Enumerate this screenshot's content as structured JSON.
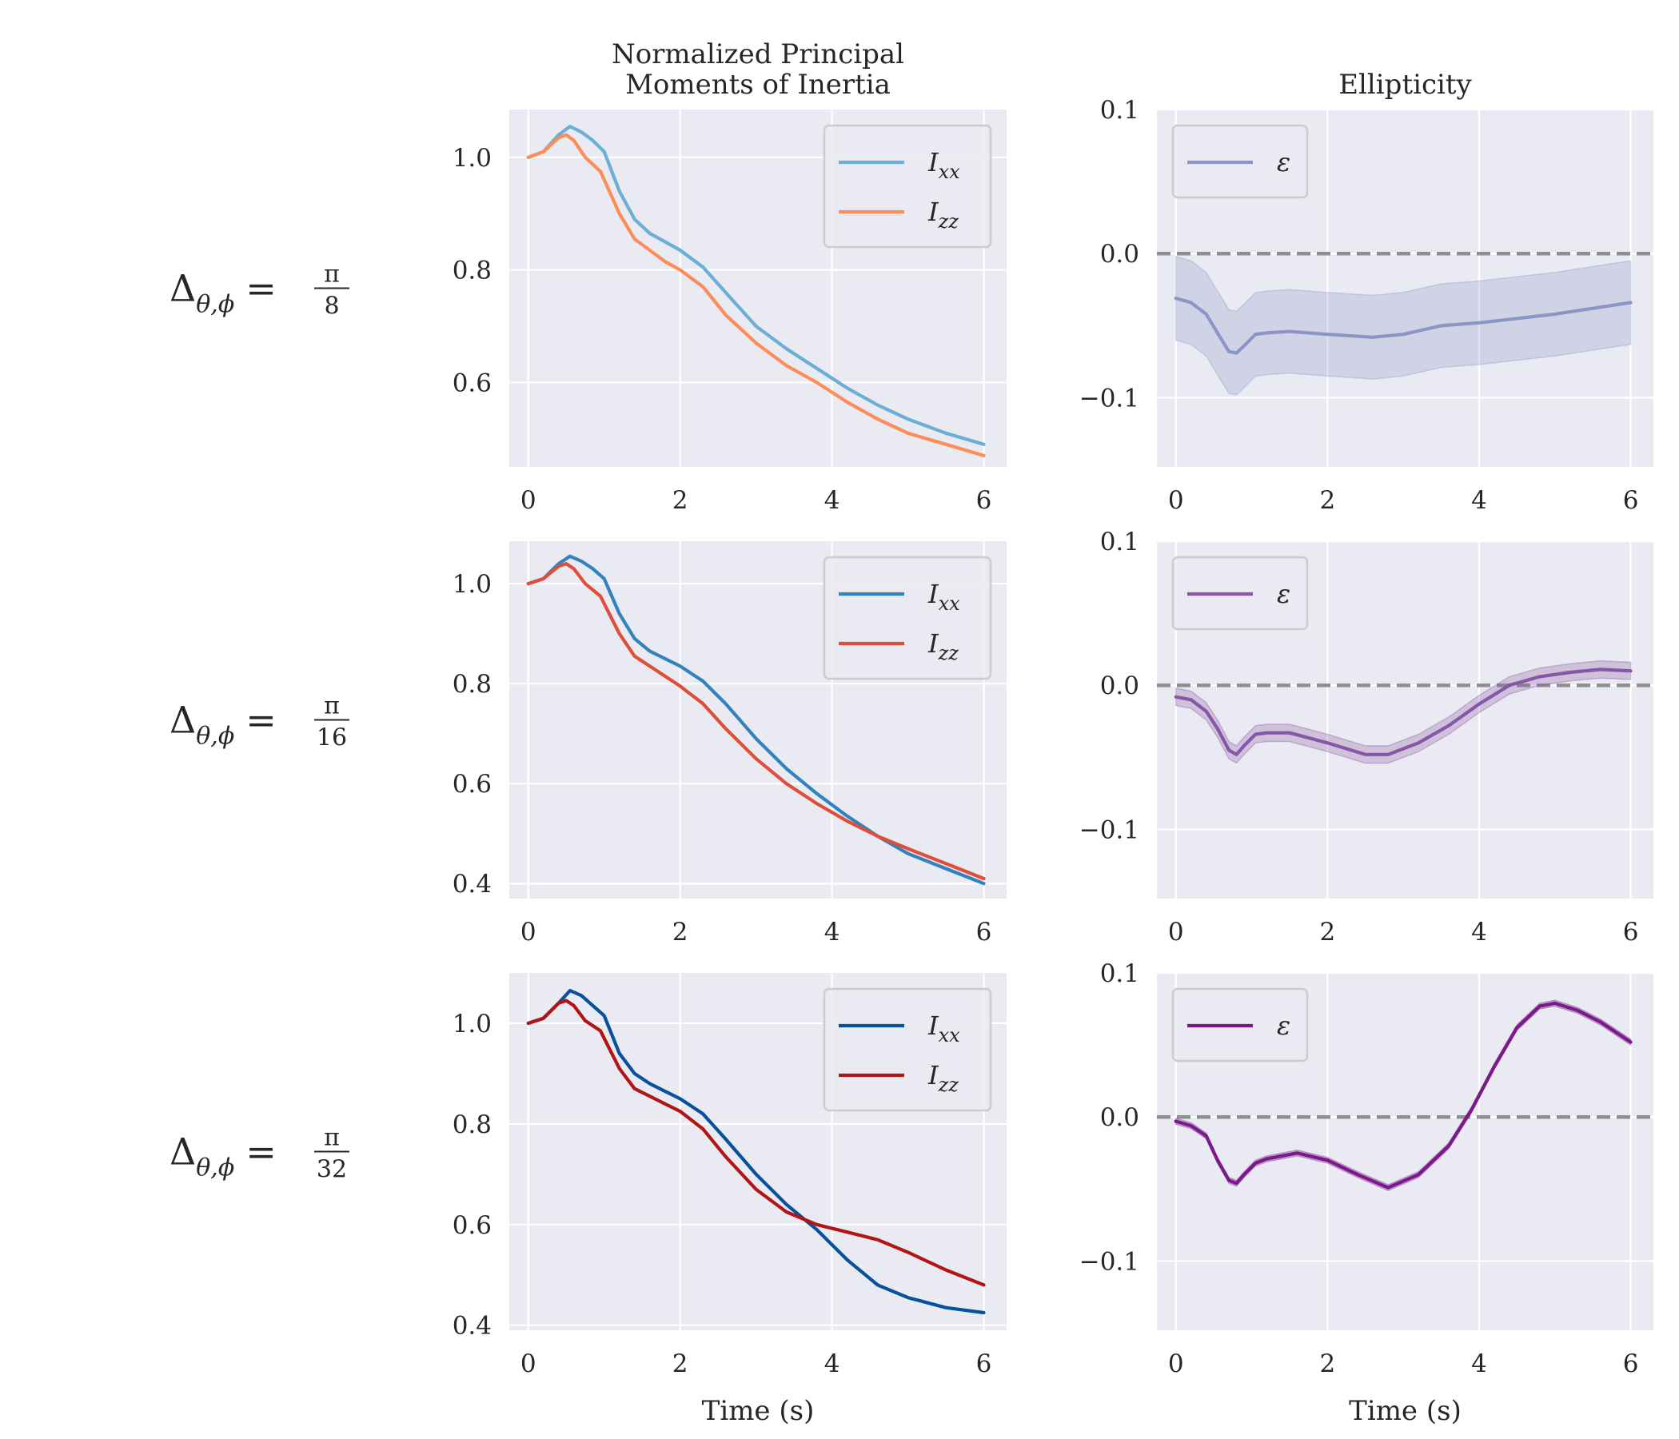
{
  "chart_data": [
    {
      "type": "line",
      "row": 0,
      "col": 0,
      "title": [
        "Normalized Principal",
        "Moments of Inertia"
      ],
      "xlabel": "",
      "ylabel": "",
      "xlim": [
        -0.25,
        6.3
      ],
      "ylim": [
        0.45,
        1.085
      ],
      "xticks": [
        0,
        2,
        4,
        6
      ],
      "yticks": [
        0.6,
        0.8,
        1.0
      ],
      "xtick_labels": [
        "0",
        "2",
        "4",
        "6"
      ],
      "ytick_labels": [
        "0.6",
        "0.8",
        "1.0"
      ],
      "grid": true,
      "legend": "top-right",
      "series": [
        {
          "name": "I",
          "sub": "xx",
          "color": "#6baed6",
          "x": [
            0,
            0.2,
            0.4,
            0.55,
            0.7,
            0.85,
            1.0,
            1.2,
            1.4,
            1.6,
            1.8,
            2.0,
            2.3,
            2.6,
            3.0,
            3.4,
            3.8,
            4.2,
            4.6,
            5.0,
            5.5,
            6.0
          ],
          "y": [
            1.0,
            1.01,
            1.04,
            1.055,
            1.045,
            1.03,
            1.01,
            0.94,
            0.89,
            0.865,
            0.85,
            0.835,
            0.805,
            0.76,
            0.7,
            0.66,
            0.625,
            0.59,
            0.56,
            0.535,
            0.51,
            0.49
          ]
        },
        {
          "name": "I",
          "sub": "zz",
          "color": "#fc8d59",
          "x": [
            0,
            0.2,
            0.4,
            0.5,
            0.6,
            0.75,
            0.95,
            1.2,
            1.4,
            1.6,
            1.8,
            2.0,
            2.3,
            2.6,
            3.0,
            3.4,
            3.8,
            4.2,
            4.6,
            5.0,
            5.5,
            6.0
          ],
          "y": [
            1.0,
            1.01,
            1.035,
            1.04,
            1.03,
            1.0,
            0.975,
            0.9,
            0.855,
            0.835,
            0.815,
            0.8,
            0.77,
            0.72,
            0.67,
            0.63,
            0.6,
            0.565,
            0.535,
            0.51,
            0.49,
            0.47
          ]
        }
      ]
    },
    {
      "type": "line",
      "row": 0,
      "col": 1,
      "title": [
        "Ellipticity"
      ],
      "xlabel": "",
      "ylabel": "",
      "xlim": [
        -0.25,
        6.3
      ],
      "ylim": [
        -0.148,
        0.1
      ],
      "xticks": [
        0,
        2,
        4,
        6
      ],
      "yticks": [
        -0.1,
        0.0,
        0.1
      ],
      "xtick_labels": [
        "0",
        "2",
        "4",
        "6"
      ],
      "ytick_labels": [
        "−0.1",
        "0.0",
        "0.1"
      ],
      "grid": true,
      "legend": "top-left",
      "hline": 0.0,
      "series": [
        {
          "name": "ε",
          "sub": "",
          "color": "#8c96c6",
          "x": [
            0,
            0.2,
            0.4,
            0.55,
            0.7,
            0.8,
            0.9,
            1.05,
            1.2,
            1.5,
            2.0,
            2.6,
            3.0,
            3.5,
            4.0,
            4.5,
            5.0,
            5.5,
            6.0
          ],
          "y": [
            -0.031,
            -0.034,
            -0.042,
            -0.055,
            -0.068,
            -0.069,
            -0.064,
            -0.056,
            -0.055,
            -0.054,
            -0.056,
            -0.058,
            -0.056,
            -0.05,
            -0.048,
            -0.045,
            -0.042,
            -0.038,
            -0.034
          ],
          "band": 0.029
        }
      ]
    },
    {
      "type": "line",
      "row": 1,
      "col": 0,
      "title": [],
      "xlabel": "",
      "ylabel": "",
      "xlim": [
        -0.25,
        6.3
      ],
      "ylim": [
        0.37,
        1.085
      ],
      "xticks": [
        0,
        2,
        4,
        6
      ],
      "yticks": [
        0.4,
        0.6,
        0.8,
        1.0
      ],
      "xtick_labels": [
        "0",
        "2",
        "4",
        "6"
      ],
      "ytick_labels": [
        "0.4",
        "0.6",
        "0.8",
        "1.0"
      ],
      "grid": true,
      "legend": "top-right",
      "series": [
        {
          "name": "I",
          "sub": "xx",
          "color": "#3182bd",
          "x": [
            0,
            0.2,
            0.4,
            0.55,
            0.7,
            0.85,
            1.0,
            1.2,
            1.4,
            1.6,
            1.8,
            2.0,
            2.3,
            2.6,
            3.0,
            3.4,
            3.8,
            4.2,
            4.6,
            5.0,
            5.5,
            6.0
          ],
          "y": [
            1.0,
            1.01,
            1.04,
            1.055,
            1.045,
            1.03,
            1.01,
            0.94,
            0.89,
            0.865,
            0.85,
            0.835,
            0.805,
            0.76,
            0.69,
            0.63,
            0.58,
            0.535,
            0.495,
            0.46,
            0.43,
            0.4
          ]
        },
        {
          "name": "I",
          "sub": "zz",
          "color": "#de4e3a",
          "x": [
            0,
            0.2,
            0.4,
            0.5,
            0.6,
            0.75,
            0.95,
            1.2,
            1.4,
            1.6,
            1.8,
            2.0,
            2.3,
            2.6,
            3.0,
            3.4,
            3.8,
            4.2,
            4.6,
            5.0,
            5.5,
            6.0
          ],
          "y": [
            1.0,
            1.01,
            1.035,
            1.04,
            1.03,
            1.0,
            0.975,
            0.9,
            0.855,
            0.835,
            0.815,
            0.795,
            0.76,
            0.71,
            0.65,
            0.6,
            0.56,
            0.525,
            0.495,
            0.47,
            0.44,
            0.41
          ]
        }
      ]
    },
    {
      "type": "line",
      "row": 1,
      "col": 1,
      "title": [],
      "xlabel": "",
      "ylabel": "",
      "xlim": [
        -0.25,
        6.3
      ],
      "ylim": [
        -0.148,
        0.1
      ],
      "xticks": [
        0,
        2,
        4,
        6
      ],
      "yticks": [
        -0.1,
        0.0,
        0.1
      ],
      "xtick_labels": [
        "0",
        "2",
        "4",
        "6"
      ],
      "ytick_labels": [
        "−0.1",
        "0.0",
        "0.1"
      ],
      "grid": true,
      "legend": "top-left",
      "hline": 0.0,
      "series": [
        {
          "name": "ε",
          "sub": "",
          "color": "#8856a7",
          "x": [
            0,
            0.2,
            0.4,
            0.55,
            0.7,
            0.8,
            0.9,
            1.05,
            1.2,
            1.5,
            2.0,
            2.5,
            2.8,
            3.2,
            3.6,
            4.0,
            4.4,
            4.8,
            5.2,
            5.6,
            6.0
          ],
          "y": [
            -0.008,
            -0.01,
            -0.018,
            -0.03,
            -0.045,
            -0.048,
            -0.042,
            -0.034,
            -0.033,
            -0.033,
            -0.04,
            -0.048,
            -0.048,
            -0.04,
            -0.028,
            -0.013,
            0.0,
            0.006,
            0.009,
            0.011,
            0.01
          ],
          "band": 0.006
        }
      ]
    },
    {
      "type": "line",
      "row": 2,
      "col": 0,
      "title": [],
      "xlabel": "Time (s)",
      "ylabel": "",
      "xlim": [
        -0.25,
        6.3
      ],
      "ylim": [
        0.39,
        1.1
      ],
      "xticks": [
        0,
        2,
        4,
        6
      ],
      "yticks": [
        0.4,
        0.6,
        0.8,
        1.0
      ],
      "xtick_labels": [
        "0",
        "2",
        "4",
        "6"
      ],
      "ytick_labels": [
        "0.4",
        "0.6",
        "0.8",
        "1.0"
      ],
      "grid": true,
      "legend": "top-right",
      "series": [
        {
          "name": "I",
          "sub": "xx",
          "color": "#08519c",
          "x": [
            0,
            0.2,
            0.4,
            0.55,
            0.7,
            0.85,
            1.0,
            1.2,
            1.4,
            1.6,
            1.8,
            2.0,
            2.3,
            2.6,
            3.0,
            3.4,
            3.8,
            4.2,
            4.6,
            5.0,
            5.5,
            6.0
          ],
          "y": [
            1.0,
            1.01,
            1.04,
            1.065,
            1.055,
            1.035,
            1.015,
            0.94,
            0.9,
            0.88,
            0.865,
            0.85,
            0.82,
            0.77,
            0.7,
            0.64,
            0.59,
            0.53,
            0.48,
            0.455,
            0.435,
            0.425
          ]
        },
        {
          "name": "I",
          "sub": "zz",
          "color": "#b21515",
          "x": [
            0,
            0.2,
            0.4,
            0.5,
            0.6,
            0.75,
            0.95,
            1.2,
            1.4,
            1.6,
            1.8,
            2.0,
            2.3,
            2.6,
            3.0,
            3.4,
            3.8,
            4.2,
            4.6,
            5.0,
            5.5,
            6.0
          ],
          "y": [
            1.0,
            1.01,
            1.04,
            1.045,
            1.035,
            1.005,
            0.985,
            0.91,
            0.87,
            0.855,
            0.84,
            0.825,
            0.79,
            0.735,
            0.67,
            0.625,
            0.6,
            0.585,
            0.57,
            0.545,
            0.51,
            0.48
          ]
        }
      ]
    },
    {
      "type": "line",
      "row": 2,
      "col": 1,
      "title": [],
      "xlabel": "Time (s)",
      "ylabel": "",
      "xlim": [
        -0.25,
        6.3
      ],
      "ylim": [
        -0.148,
        0.1
      ],
      "xticks": [
        0,
        2,
        4,
        6
      ],
      "yticks": [
        -0.1,
        0.0,
        0.1
      ],
      "xtick_labels": [
        "0",
        "2",
        "4",
        "6"
      ],
      "ytick_labels": [
        "−0.1",
        "0.0",
        "0.1"
      ],
      "grid": true,
      "legend": "top-left",
      "hline": 0.0,
      "series": [
        {
          "name": "ε",
          "sub": "",
          "color": "#7a1a8a",
          "x": [
            0,
            0.2,
            0.4,
            0.55,
            0.7,
            0.8,
            0.9,
            1.05,
            1.2,
            1.6,
            2.0,
            2.4,
            2.8,
            3.2,
            3.6,
            3.9,
            4.2,
            4.5,
            4.8,
            5.0,
            5.3,
            5.6,
            6.0
          ],
          "y": [
            -0.003,
            -0.006,
            -0.013,
            -0.03,
            -0.044,
            -0.046,
            -0.04,
            -0.032,
            -0.029,
            -0.025,
            -0.03,
            -0.04,
            -0.049,
            -0.04,
            -0.02,
            0.005,
            0.035,
            0.062,
            0.077,
            0.079,
            0.074,
            0.066,
            0.052
          ],
          "band": 0.002
        }
      ]
    }
  ],
  "row_labels": [
    {
      "symbol": "Δ",
      "sub": "θ,ϕ",
      "eq": "=",
      "num": "π",
      "den": "8"
    },
    {
      "symbol": "Δ",
      "sub": "θ,ϕ",
      "eq": "=",
      "num": "π",
      "den": "16"
    },
    {
      "symbol": "Δ",
      "sub": "θ,ϕ",
      "eq": "=",
      "num": "π",
      "den": "32"
    }
  ],
  "colors": {
    "axes_bg": "#eaeaf2",
    "grid": "#ffffff",
    "text": "#262626",
    "hline": "#8f8f8f",
    "legend_edge": "#cccccc"
  }
}
